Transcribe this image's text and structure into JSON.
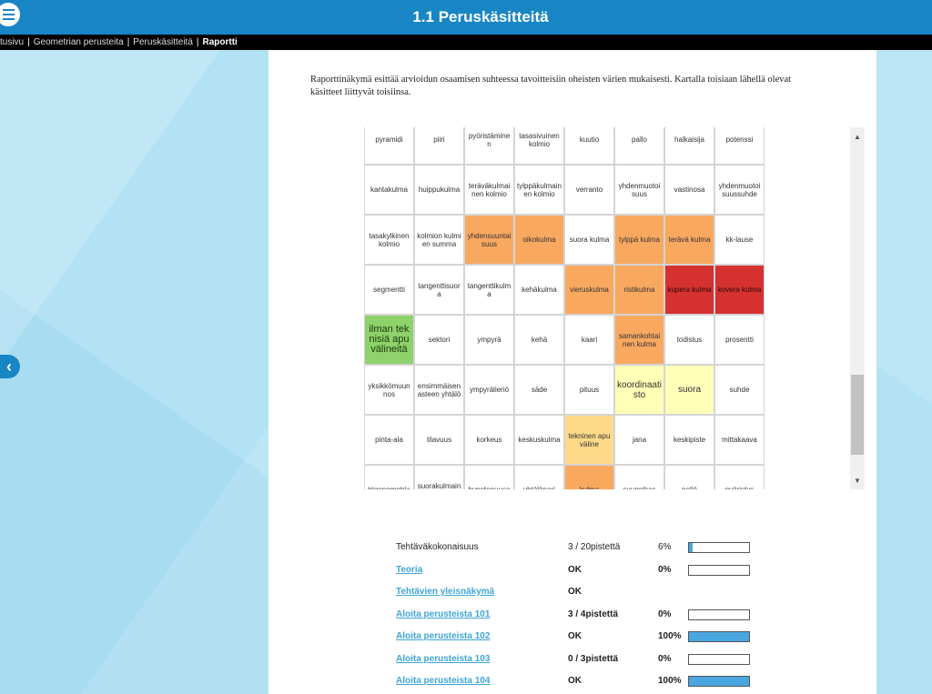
{
  "header": {
    "title": "1.1 Peruskäsitteitä"
  },
  "breadcrumb": [
    "tusivu",
    "Geometrian perusteita",
    "Peruskäsitteitä",
    "Raportti"
  ],
  "intro_text": "Raporttinäkymä esittää arvioidun osaamisen suhteessa tavoitteisiin oheisten värien mukaisesti. Kartalla toisiaan lähellä olevat käsitteet liittyvät toisiinsa.",
  "map": [
    [
      {
        "t": "pyramidi",
        "c": ""
      },
      {
        "t": "piiri",
        "c": ""
      },
      {
        "t": "pyöristäminen",
        "c": ""
      },
      {
        "t": "tasasivuinen kolmio",
        "c": ""
      },
      {
        "t": "kuutio",
        "c": ""
      },
      {
        "t": "pallo",
        "c": ""
      },
      {
        "t": "halkaisija",
        "c": ""
      },
      {
        "t": "potenssi",
        "c": ""
      }
    ],
    [
      {
        "t": "kantakulma",
        "c": ""
      },
      {
        "t": "huippukulma",
        "c": ""
      },
      {
        "t": "teräväkulmainen kolmio",
        "c": ""
      },
      {
        "t": "tylppäkulmainen kolmio",
        "c": ""
      },
      {
        "t": "verranto",
        "c": ""
      },
      {
        "t": "yhdenmuotoisuus",
        "c": ""
      },
      {
        "t": "vastinosa",
        "c": ""
      },
      {
        "t": "yhdenmuotoisuussuhde",
        "c": ""
      }
    ],
    [
      {
        "t": "tasakylkinen kolmio",
        "c": ""
      },
      {
        "t": "kolmion kulmien summa",
        "c": ""
      },
      {
        "t": "yhdensuuntaisuus",
        "c": "orange"
      },
      {
        "t": "oikokulma",
        "c": "orange"
      },
      {
        "t": "suora kulma",
        "c": ""
      },
      {
        "t": "tylppä kulma",
        "c": "orange"
      },
      {
        "t": "terävä kulma",
        "c": "orange"
      },
      {
        "t": "kk-lause",
        "c": ""
      }
    ],
    [
      {
        "t": "segmentti",
        "c": ""
      },
      {
        "t": "tangenttisuora",
        "c": ""
      },
      {
        "t": "tangenttikulma",
        "c": ""
      },
      {
        "t": "kehäkulma",
        "c": ""
      },
      {
        "t": "vieruskulma",
        "c": "orange"
      },
      {
        "t": "ristikulma",
        "c": "orange"
      },
      {
        "t": "kupera kulma",
        "c": "red"
      },
      {
        "t": "kovera kulma",
        "c": "red"
      }
    ],
    [
      {
        "t": "ilman teknisiä apuvälineitä",
        "c": "green"
      },
      {
        "t": "sektori",
        "c": ""
      },
      {
        "t": "ympyrä",
        "c": ""
      },
      {
        "t": "kehä",
        "c": ""
      },
      {
        "t": "kaari",
        "c": ""
      },
      {
        "t": "samankohtainen kulma",
        "c": "orange"
      },
      {
        "t": "todistus",
        "c": ""
      },
      {
        "t": "prosentti",
        "c": ""
      }
    ],
    [
      {
        "t": "yksikkömuunnos",
        "c": ""
      },
      {
        "t": "ensimmäisen asteen yhtälö",
        "c": ""
      },
      {
        "t": "ympyrälieriö",
        "c": ""
      },
      {
        "t": "säde",
        "c": ""
      },
      {
        "t": "pituus",
        "c": ""
      },
      {
        "t": "koordinaatisto",
        "c": "yellow"
      },
      {
        "t": "suora",
        "c": "yellow"
      },
      {
        "t": "suhde",
        "c": ""
      }
    ],
    [
      {
        "t": "pinta-ala",
        "c": ""
      },
      {
        "t": "tilavuus",
        "c": ""
      },
      {
        "t": "korkeus",
        "c": ""
      },
      {
        "t": "keskuskulma",
        "c": ""
      },
      {
        "t": "tekninen apuväline",
        "c": "lightorange"
      },
      {
        "t": "jana",
        "c": ""
      },
      {
        "t": "keskipiste",
        "c": ""
      },
      {
        "t": "mittakaava",
        "c": ""
      }
    ],
    [
      {
        "t": "trigonometria",
        "c": ""
      },
      {
        "t": "suorakulmainen",
        "c": ""
      },
      {
        "t": "hypotenuusa",
        "c": ""
      },
      {
        "t": "yhtälöpari",
        "c": ""
      },
      {
        "t": "kulma",
        "c": "orange"
      },
      {
        "t": "suunnikas",
        "c": ""
      },
      {
        "t": "neliö",
        "c": ""
      },
      {
        "t": "pyöristys",
        "c": ""
      }
    ]
  ],
  "report": [
    {
      "name": "Tehtäväkokonaisuus",
      "link": false,
      "score": "3 / 20pistettä",
      "score_bold": false,
      "pct": "6%",
      "pct_bold": false,
      "fill": 0.06
    },
    {
      "name": "Teoria",
      "link": true,
      "score": "OK",
      "score_bold": true,
      "pct": "0%",
      "pct_bold": true,
      "fill": 0
    },
    {
      "name": "Tehtävien yleisnäkymä",
      "link": true,
      "score": "OK",
      "score_bold": true,
      "pct": "",
      "pct_bold": true,
      "fill": null
    },
    {
      "name": "Aloita perusteista 101",
      "link": true,
      "score": "3 / 4pistettä",
      "score_bold": true,
      "pct": "0%",
      "pct_bold": true,
      "fill": 0
    },
    {
      "name": "Aloita perusteista 102",
      "link": true,
      "score": "OK",
      "score_bold": true,
      "pct": "100%",
      "pct_bold": true,
      "fill": 1
    },
    {
      "name": "Aloita perusteista 103",
      "link": true,
      "score": "0 / 3pistettä",
      "score_bold": true,
      "pct": "0%",
      "pct_bold": true,
      "fill": 0
    },
    {
      "name": "Aloita perusteista 104",
      "link": true,
      "score": "OK",
      "score_bold": true,
      "pct": "100%",
      "pct_bold": true,
      "fill": 1
    }
  ],
  "colors": {
    "header": "#1886c4",
    "progress_fill": "#4aa6de"
  },
  "icons": {
    "menu": "hamburger-icon",
    "back": "chevron-left-icon",
    "scroll_up": "triangle-up-icon",
    "scroll_down": "triangle-down-icon"
  }
}
